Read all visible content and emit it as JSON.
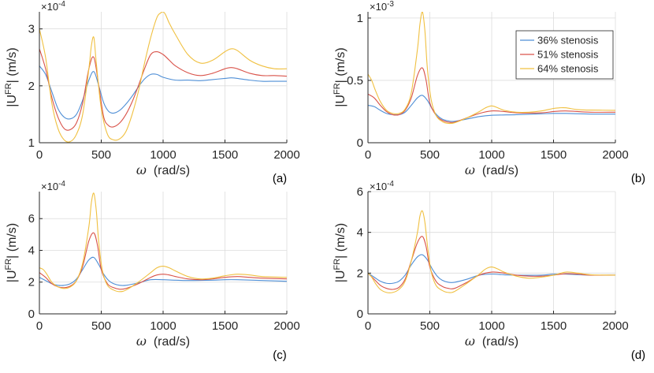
{
  "colors": {
    "s36": "#4f8fd6",
    "s51": "#d9534a",
    "s64": "#f0c040"
  },
  "legend": [
    "36% stenosis",
    "51% stenosis",
    "64% stenosis"
  ],
  "chart_data": [
    {
      "type": "line",
      "panel": "(a)",
      "xlabel": "ω   (rad/s)",
      "ylabel": "|U^FR| (m/s)",
      "exponent": "×10^-4",
      "exponent_base": "×10",
      "exponent_power": "-4",
      "xlim": [
        0,
        2000
      ],
      "ylim": [
        1,
        3.3
      ],
      "xticks": [
        0,
        500,
        1000,
        1500,
        2000
      ],
      "yticks": [
        1,
        2,
        3
      ],
      "legend_visible": false,
      "series": [
        {
          "name": "36% stenosis",
          "x": [
            0,
            50,
            100,
            150,
            200,
            250,
            300,
            350,
            400,
            440,
            480,
            520,
            560,
            600,
            650,
            700,
            750,
            800,
            850,
            900,
            950,
            1000,
            1100,
            1200,
            1300,
            1400,
            1500,
            1550,
            1600,
            1700,
            1800,
            1900,
            2000
          ],
          "y": [
            2.35,
            2.2,
            1.9,
            1.6,
            1.45,
            1.42,
            1.5,
            1.75,
            2.1,
            2.25,
            2.0,
            1.7,
            1.55,
            1.52,
            1.57,
            1.68,
            1.82,
            1.98,
            2.12,
            2.2,
            2.2,
            2.15,
            2.1,
            2.1,
            2.09,
            2.11,
            2.13,
            2.14,
            2.13,
            2.1,
            2.08,
            2.08,
            2.08
          ]
        },
        {
          "name": "51% stenosis",
          "x": [
            0,
            50,
            100,
            150,
            200,
            250,
            300,
            350,
            400,
            440,
            480,
            520,
            560,
            600,
            650,
            700,
            750,
            800,
            850,
            900,
            950,
            1000,
            1050,
            1100,
            1200,
            1300,
            1400,
            1500,
            1550,
            1600,
            1700,
            1800,
            1900,
            2000
          ],
          "y": [
            2.65,
            2.3,
            1.8,
            1.45,
            1.25,
            1.23,
            1.35,
            1.7,
            2.3,
            2.5,
            2.0,
            1.45,
            1.3,
            1.28,
            1.35,
            1.5,
            1.72,
            2.0,
            2.3,
            2.55,
            2.6,
            2.55,
            2.45,
            2.35,
            2.23,
            2.18,
            2.22,
            2.3,
            2.32,
            2.3,
            2.22,
            2.18,
            2.18,
            2.17
          ]
        },
        {
          "name": "64% stenosis",
          "x": [
            0,
            50,
            100,
            150,
            200,
            250,
            300,
            350,
            400,
            420,
            440,
            460,
            500,
            550,
            600,
            650,
            700,
            750,
            800,
            850,
            900,
            950,
            980,
            1000,
            1020,
            1050,
            1100,
            1200,
            1300,
            1400,
            1500,
            1550,
            1600,
            1700,
            1800,
            1900,
            2000
          ],
          "y": [
            3.0,
            2.5,
            1.7,
            1.25,
            1.05,
            1.02,
            1.15,
            1.5,
            2.3,
            2.7,
            2.85,
            2.4,
            1.6,
            1.15,
            1.05,
            1.07,
            1.2,
            1.5,
            1.9,
            2.4,
            2.85,
            3.2,
            3.28,
            3.3,
            3.25,
            3.1,
            2.9,
            2.55,
            2.4,
            2.45,
            2.6,
            2.65,
            2.62,
            2.45,
            2.35,
            2.3,
            2.3
          ]
        }
      ]
    },
    {
      "type": "line",
      "panel": "(b)",
      "xlabel": "ω   (rad/s)",
      "ylabel": "|U^FR| (m/s)",
      "exponent": "×10^-3",
      "exponent_base": "×10",
      "exponent_power": "-3",
      "xlim": [
        0,
        2000
      ],
      "ylim": [
        0,
        1.05
      ],
      "xticks": [
        0,
        500,
        1000,
        1500,
        2000
      ],
      "yticks": [
        0,
        0.5,
        1
      ],
      "legend_visible": true,
      "series": [
        {
          "name": "36% stenosis",
          "x": [
            0,
            50,
            100,
            150,
            200,
            250,
            300,
            350,
            400,
            440,
            480,
            520,
            560,
            600,
            650,
            700,
            800,
            900,
            1000,
            1200,
            1400,
            1500,
            1600,
            1800,
            2000
          ],
          "y": [
            0.3,
            0.29,
            0.26,
            0.235,
            0.225,
            0.225,
            0.245,
            0.3,
            0.36,
            0.38,
            0.34,
            0.27,
            0.22,
            0.19,
            0.175,
            0.172,
            0.19,
            0.21,
            0.22,
            0.225,
            0.232,
            0.235,
            0.235,
            0.23,
            0.23
          ]
        },
        {
          "name": "51% stenosis",
          "x": [
            0,
            50,
            100,
            150,
            200,
            250,
            300,
            350,
            400,
            440,
            470,
            500,
            550,
            600,
            650,
            700,
            800,
            900,
            1000,
            1100,
            1200,
            1400,
            1500,
            1600,
            1800,
            2000
          ],
          "y": [
            0.39,
            0.36,
            0.3,
            0.25,
            0.225,
            0.225,
            0.26,
            0.36,
            0.54,
            0.6,
            0.5,
            0.32,
            0.22,
            0.18,
            0.165,
            0.165,
            0.2,
            0.235,
            0.255,
            0.25,
            0.24,
            0.24,
            0.25,
            0.255,
            0.245,
            0.245
          ]
        },
        {
          "name": "64% stenosis",
          "x": [
            0,
            30,
            60,
            100,
            150,
            200,
            250,
            300,
            350,
            400,
            420,
            440,
            460,
            480,
            510,
            550,
            600,
            650,
            700,
            800,
            900,
            950,
            1000,
            1050,
            1100,
            1200,
            1300,
            1400,
            1500,
            1550,
            1600,
            1700,
            1800,
            2000
          ],
          "y": [
            0.55,
            0.5,
            0.42,
            0.33,
            0.26,
            0.235,
            0.235,
            0.27,
            0.4,
            0.75,
            0.95,
            1.05,
            0.9,
            0.6,
            0.35,
            0.22,
            0.17,
            0.155,
            0.16,
            0.2,
            0.25,
            0.28,
            0.295,
            0.28,
            0.26,
            0.245,
            0.245,
            0.255,
            0.275,
            0.28,
            0.28,
            0.265,
            0.262,
            0.26
          ]
        }
      ]
    },
    {
      "type": "line",
      "panel": "(c)",
      "xlabel": "ω   (rad/s)",
      "ylabel": "|U^FR| (m/s)",
      "exponent": "×10^-4",
      "exponent_base": "×10",
      "exponent_power": "-4",
      "xlim": [
        0,
        2000
      ],
      "ylim": [
        0,
        7.7
      ],
      "xticks": [
        0,
        500,
        1000,
        1500,
        2000
      ],
      "yticks": [
        0,
        2,
        4,
        6
      ],
      "legend_visible": false,
      "series": [
        {
          "name": "36% stenosis",
          "x": [
            0,
            50,
            100,
            150,
            200,
            250,
            300,
            350,
            400,
            440,
            480,
            520,
            560,
            600,
            650,
            700,
            800,
            900,
            1000,
            1100,
            1200,
            1400,
            1500,
            1600,
            1800,
            2000
          ],
          "y": [
            2.3,
            2.1,
            1.9,
            1.8,
            1.8,
            1.9,
            2.2,
            2.8,
            3.4,
            3.55,
            3.1,
            2.5,
            2.1,
            1.9,
            1.8,
            1.8,
            1.95,
            2.15,
            2.15,
            2.12,
            2.1,
            2.12,
            2.15,
            2.15,
            2.1,
            2.05
          ]
        },
        {
          "name": "51% stenosis",
          "x": [
            0,
            50,
            100,
            150,
            200,
            250,
            300,
            350,
            400,
            440,
            470,
            500,
            550,
            600,
            650,
            700,
            800,
            900,
            950,
            1000,
            1050,
            1100,
            1200,
            1300,
            1400,
            1500,
            1600,
            1700,
            1800,
            2000
          ],
          "y": [
            2.6,
            2.3,
            1.9,
            1.7,
            1.65,
            1.75,
            2.1,
            3.0,
            4.6,
            5.1,
            4.3,
            2.8,
            1.9,
            1.65,
            1.55,
            1.6,
            1.9,
            2.3,
            2.45,
            2.5,
            2.45,
            2.35,
            2.2,
            2.15,
            2.2,
            2.3,
            2.35,
            2.3,
            2.25,
            2.2
          ]
        },
        {
          "name": "64% stenosis",
          "x": [
            0,
            30,
            60,
            100,
            150,
            200,
            250,
            300,
            350,
            400,
            420,
            440,
            460,
            480,
            510,
            550,
            600,
            650,
            700,
            800,
            900,
            950,
            1000,
            1050,
            1100,
            1200,
            1300,
            1400,
            1500,
            1600,
            1700,
            1800,
            2000
          ],
          "y": [
            2.9,
            2.8,
            2.5,
            2.0,
            1.7,
            1.6,
            1.7,
            2.1,
            3.2,
            5.5,
            7.0,
            7.6,
            6.5,
            4.5,
            2.7,
            1.8,
            1.5,
            1.4,
            1.5,
            2.0,
            2.6,
            2.9,
            3.0,
            2.9,
            2.7,
            2.35,
            2.2,
            2.25,
            2.4,
            2.5,
            2.45,
            2.35,
            2.3
          ]
        }
      ]
    },
    {
      "type": "line",
      "panel": "(d)",
      "xlabel": "ω   (rad/s)",
      "ylabel": "|U^FR| (m/s)",
      "exponent": "×10^-4",
      "exponent_base": "×10",
      "exponent_power": "-4",
      "xlim": [
        0,
        2000
      ],
      "ylim": [
        0,
        6
      ],
      "xticks": [
        0,
        500,
        1000,
        1500,
        2000
      ],
      "yticks": [
        0,
        2,
        4,
        6
      ],
      "legend_visible": false,
      "series": [
        {
          "name": "36% stenosis",
          "x": [
            0,
            50,
            100,
            150,
            200,
            250,
            300,
            350,
            400,
            440,
            480,
            520,
            560,
            600,
            650,
            700,
            800,
            900,
            1000,
            1100,
            1200,
            1400,
            1500,
            1600,
            1800,
            2000
          ],
          "y": [
            2.0,
            1.8,
            1.6,
            1.5,
            1.5,
            1.6,
            1.9,
            2.4,
            2.8,
            2.9,
            2.65,
            2.2,
            1.85,
            1.65,
            1.55,
            1.55,
            1.7,
            1.9,
            1.95,
            1.92,
            1.9,
            1.9,
            1.95,
            1.95,
            1.9,
            1.9
          ]
        },
        {
          "name": "51% stenosis",
          "x": [
            0,
            50,
            100,
            150,
            200,
            250,
            300,
            350,
            400,
            440,
            470,
            500,
            550,
            600,
            650,
            700,
            800,
            900,
            1000,
            1100,
            1200,
            1300,
            1400,
            1500,
            1600,
            1700,
            1800,
            2000
          ],
          "y": [
            2.0,
            1.7,
            1.4,
            1.25,
            1.2,
            1.3,
            1.7,
            2.6,
            3.5,
            3.8,
            3.3,
            2.3,
            1.6,
            1.35,
            1.25,
            1.25,
            1.55,
            1.9,
            2.05,
            2.0,
            1.9,
            1.85,
            1.85,
            1.9,
            1.97,
            1.95,
            1.9,
            1.9
          ]
        },
        {
          "name": "64% stenosis",
          "x": [
            0,
            30,
            60,
            100,
            150,
            200,
            250,
            300,
            350,
            400,
            420,
            440,
            460,
            480,
            510,
            550,
            600,
            650,
            700,
            800,
            900,
            950,
            1000,
            1050,
            1100,
            1200,
            1300,
            1400,
            1500,
            1600,
            1700,
            1800,
            2000
          ],
          "y": [
            2.0,
            1.8,
            1.5,
            1.2,
            1.05,
            1.05,
            1.2,
            1.6,
            2.6,
            4.0,
            4.8,
            5.05,
            4.5,
            3.4,
            2.1,
            1.4,
            1.15,
            1.05,
            1.1,
            1.5,
            1.95,
            2.2,
            2.3,
            2.2,
            2.05,
            1.85,
            1.75,
            1.8,
            1.9,
            2.05,
            2.0,
            1.92,
            1.9
          ]
        }
      ]
    }
  ]
}
